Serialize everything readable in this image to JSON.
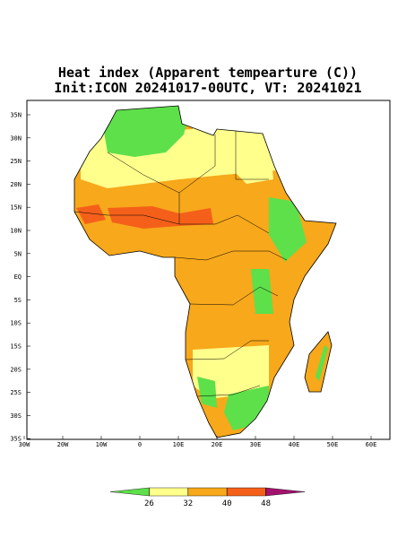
{
  "map": {
    "title": "Heat index (Apparent tempearture (C))",
    "subtitle": "Init:ICON 20241017-00UTC, VT: 20241021",
    "lat_labels": [
      "35N",
      "30N",
      "25N",
      "20N",
      "15N",
      "10N",
      "5N",
      "EQ",
      "5S",
      "10S",
      "15S",
      "20S",
      "25S",
      "30S",
      "35S"
    ],
    "lon_labels": [
      "30W",
      "20W",
      "10W",
      "0",
      "10E",
      "20E",
      "30E",
      "40E",
      "50E",
      "60E"
    ],
    "colorbar": {
      "ticks": [
        26,
        32,
        40,
        48
      ],
      "colors": [
        "#5de04a",
        "#ffff8c",
        "#f7a81b",
        "#f4601a",
        "#a3136e"
      ]
    }
  }
}
